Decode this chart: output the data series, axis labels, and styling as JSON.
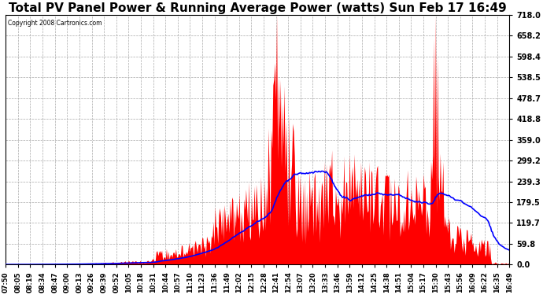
{
  "title": "Total PV Panel Power & Running Average Power (watts) Sun Feb 17 16:49",
  "copyright": "Copyright 2008 Cartronics.com",
  "ymin": 0.0,
  "ymax": 718.0,
  "ytick_values": [
    0.0,
    59.8,
    119.7,
    179.5,
    239.3,
    299.2,
    359.0,
    418.8,
    478.7,
    538.5,
    598.4,
    658.2,
    718.0
  ],
  "ytick_labels": [
    "0.0",
    "59.8",
    "119.7",
    "179.5",
    "239.3",
    "299.2",
    "359.0",
    "418.8",
    "478.7",
    "538.5",
    "598.4",
    "658.2",
    "718.0"
  ],
  "background_color": "#ffffff",
  "bar_color": "#ff0000",
  "line_color": "#0000ff",
  "grid_color": "#aaaaaa",
  "title_fontsize": 11,
  "x_tick_labels": [
    "07:50",
    "08:05",
    "08:19",
    "08:34",
    "08:47",
    "09:00",
    "09:13",
    "09:26",
    "09:39",
    "09:52",
    "10:05",
    "10:18",
    "10:31",
    "10:44",
    "10:57",
    "11:10",
    "11:23",
    "11:36",
    "11:49",
    "12:02",
    "12:15",
    "12:28",
    "12:41",
    "12:54",
    "13:07",
    "13:20",
    "13:33",
    "13:46",
    "13:59",
    "14:12",
    "14:25",
    "14:38",
    "14:51",
    "15:04",
    "15:17",
    "15:30",
    "15:43",
    "15:56",
    "16:09",
    "16:22",
    "16:35",
    "16:49"
  ],
  "n_ticks": 42
}
